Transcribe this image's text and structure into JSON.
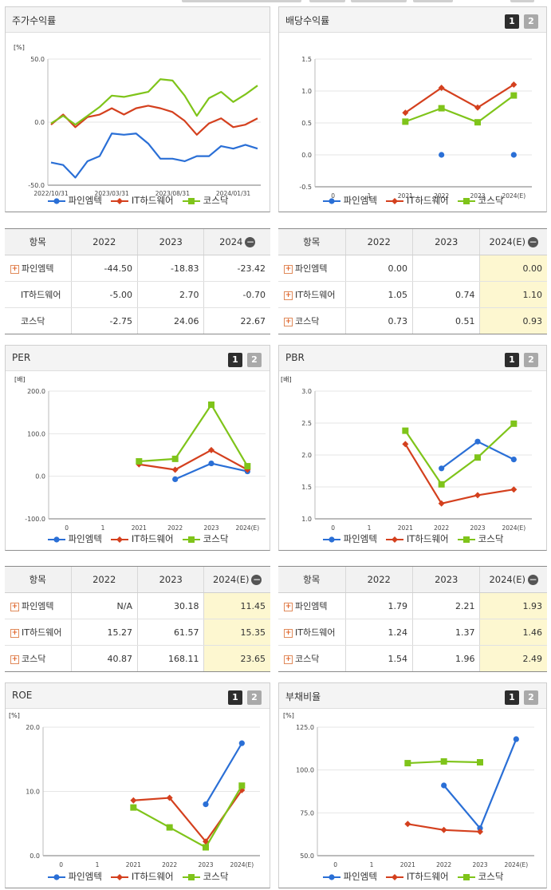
{
  "colors": {
    "fine": "#2a6fd6",
    "it": "#d4401e",
    "kosdaq": "#7fc41a"
  },
  "legend": [
    "파인엠텍",
    "IT하드웨어",
    "코스닥"
  ],
  "pager": [
    "1",
    "2"
  ],
  "panels": [
    {
      "title": "주가수익률",
      "pager": false
    },
    {
      "title": "배당수익률",
      "pager": true
    },
    {
      "title": "PER",
      "pager": true
    },
    {
      "title": "PBR",
      "pager": true
    },
    {
      "title": "ROE",
      "pager": true
    },
    {
      "title": "부채비율",
      "pager": true
    }
  ],
  "chart_data": [
    {
      "type": "line",
      "title": "주가수익률",
      "unit_label": "[%]",
      "x_tick_labels": [
        "2022/10/31",
        "2023/03/31",
        "2023/08/31",
        "2024/01/31"
      ],
      "y_ticks": [
        "50.0",
        "0.0",
        "-50.0"
      ],
      "ylim": [
        -50,
        50
      ],
      "series": [
        {
          "name": "파인엠텍",
          "values": [
            -32,
            -34,
            -44,
            -31,
            -27,
            -9,
            -10,
            -9,
            -17,
            -29,
            -29,
            -31,
            -27,
            -27,
            -19,
            -21,
            -18,
            -21
          ]
        },
        {
          "name": "IT하드웨어",
          "values": [
            -2,
            6,
            -4,
            4,
            6,
            11,
            6,
            11,
            13,
            11,
            8,
            1,
            -10,
            -1,
            3,
            -4,
            -2,
            3
          ]
        },
        {
          "name": "코스닥",
          "values": [
            -1,
            5,
            -2,
            5,
            12,
            21,
            20,
            22,
            24,
            34,
            33,
            21,
            5,
            19,
            24,
            16,
            22,
            29
          ]
        }
      ]
    },
    {
      "type": "line",
      "title": "배당수익률",
      "categories": [
        "0",
        "1",
        "2021",
        "2022",
        "2023",
        "2024(E)"
      ],
      "y_ticks": [
        "1.5",
        "1.0",
        "0.5",
        "0.0",
        "-0.5"
      ],
      "ylim": [
        -0.5,
        1.5
      ],
      "series": [
        {
          "name": "파인엠텍",
          "values": [
            null,
            null,
            null,
            0.0,
            null,
            0.0
          ]
        },
        {
          "name": "IT하드웨어",
          "values": [
            null,
            null,
            0.66,
            1.05,
            0.74,
            1.1
          ]
        },
        {
          "name": "코스닥",
          "values": [
            null,
            null,
            0.52,
            0.73,
            0.51,
            0.93
          ]
        }
      ]
    },
    {
      "type": "line",
      "title": "PER",
      "unit_label": "[배]",
      "categories": [
        "0",
        "1",
        "2021",
        "2022",
        "2023",
        "2024(E)"
      ],
      "y_ticks": [
        "200.0",
        "100.0",
        "0.0",
        "-100.0"
      ],
      "ylim": [
        -100,
        200
      ],
      "series": [
        {
          "name": "파인엠텍",
          "values": [
            null,
            null,
            null,
            -7,
            30.18,
            11.45
          ]
        },
        {
          "name": "IT하드웨어",
          "values": [
            null,
            null,
            28,
            15.27,
            61.57,
            15.35
          ]
        },
        {
          "name": "코스닥",
          "values": [
            null,
            null,
            35,
            40.87,
            168.11,
            23.65
          ]
        }
      ]
    },
    {
      "type": "line",
      "title": "PBR",
      "unit_label": "[배]",
      "categories": [
        "0",
        "1",
        "2021",
        "2022",
        "2023",
        "2024(E)"
      ],
      "y_ticks": [
        "3.0",
        "2.5",
        "2.0",
        "1.5",
        "1.0"
      ],
      "ylim": [
        1.0,
        3.0
      ],
      "series": [
        {
          "name": "파인엠텍",
          "values": [
            null,
            null,
            null,
            1.79,
            2.21,
            1.93
          ]
        },
        {
          "name": "IT하드웨어",
          "values": [
            null,
            null,
            2.17,
            1.24,
            1.37,
            1.46
          ]
        },
        {
          "name": "코스닥",
          "values": [
            null,
            null,
            2.38,
            1.54,
            1.96,
            2.49
          ]
        }
      ]
    },
    {
      "type": "line",
      "title": "ROE",
      "unit_label": "[%]",
      "categories": [
        "0",
        "1",
        "2021",
        "2022",
        "2023",
        "2024(E)"
      ],
      "y_ticks": [
        "20.0",
        "10.0",
        "0.0"
      ],
      "ylim": [
        0,
        20
      ],
      "series": [
        {
          "name": "파인엠텍",
          "values": [
            null,
            null,
            null,
            null,
            8.0,
            17.5
          ]
        },
        {
          "name": "IT하드웨어",
          "values": [
            null,
            null,
            8.6,
            9.0,
            2.2,
            10.2
          ]
        },
        {
          "name": "코스닥",
          "values": [
            null,
            null,
            7.5,
            4.4,
            1.3,
            10.9
          ]
        }
      ]
    },
    {
      "type": "line",
      "title": "부채비율",
      "unit_label": "[%]",
      "categories": [
        "0",
        "1",
        "2021",
        "2022",
        "2023",
        "2024(E)"
      ],
      "y_ticks": [
        "125.0",
        "100.0",
        "75.0",
        "50.0"
      ],
      "ylim": [
        50,
        125
      ],
      "series": [
        {
          "name": "파인엠텍",
          "values": [
            null,
            null,
            null,
            91,
            66,
            118
          ]
        },
        {
          "name": "IT하드웨어",
          "values": [
            null,
            null,
            68.5,
            65,
            64,
            null
          ]
        },
        {
          "name": "코스닥",
          "values": [
            null,
            null,
            104,
            105,
            104.5,
            null
          ]
        }
      ]
    }
  ],
  "tables": [
    {
      "headers": [
        "항목",
        "2022",
        "2023",
        "2024"
      ],
      "rows": [
        {
          "label": "파인엠텍",
          "plus": true,
          "cells": [
            "-44.50",
            "-18.83",
            "-23.42"
          ]
        },
        {
          "label": "IT하드웨어",
          "plus": false,
          "cells": [
            "-5.00",
            "2.70",
            "-0.70"
          ]
        },
        {
          "label": "코스닥",
          "plus": false,
          "cells": [
            "-2.75",
            "24.06",
            "22.67"
          ]
        }
      ]
    },
    {
      "headers": [
        "항목",
        "2022",
        "2023",
        "2024(E)"
      ],
      "rows": [
        {
          "label": "파인엠텍",
          "plus": true,
          "cells": [
            "0.00",
            "",
            "0.00"
          ]
        },
        {
          "label": "IT하드웨어",
          "plus": true,
          "cells": [
            "1.05",
            "0.74",
            "1.10"
          ]
        },
        {
          "label": "코스닥",
          "plus": true,
          "cells": [
            "0.73",
            "0.51",
            "0.93"
          ]
        }
      ]
    },
    {
      "headers": [
        "항목",
        "2022",
        "2023",
        "2024(E)"
      ],
      "rows": [
        {
          "label": "파인엠텍",
          "plus": true,
          "cells": [
            "N/A",
            "30.18",
            "11.45"
          ]
        },
        {
          "label": "IT하드웨어",
          "plus": true,
          "cells": [
            "15.27",
            "61.57",
            "15.35"
          ]
        },
        {
          "label": "코스닥",
          "plus": true,
          "cells": [
            "40.87",
            "168.11",
            "23.65"
          ]
        }
      ]
    },
    {
      "headers": [
        "항목",
        "2022",
        "2023",
        "2024(E)"
      ],
      "rows": [
        {
          "label": "파인엠텍",
          "plus": true,
          "cells": [
            "1.79",
            "2.21",
            "1.93"
          ]
        },
        {
          "label": "IT하드웨어",
          "plus": true,
          "cells": [
            "1.24",
            "1.37",
            "1.46"
          ]
        },
        {
          "label": "코스닥",
          "plus": true,
          "cells": [
            "1.54",
            "1.96",
            "2.49"
          ]
        }
      ]
    }
  ]
}
